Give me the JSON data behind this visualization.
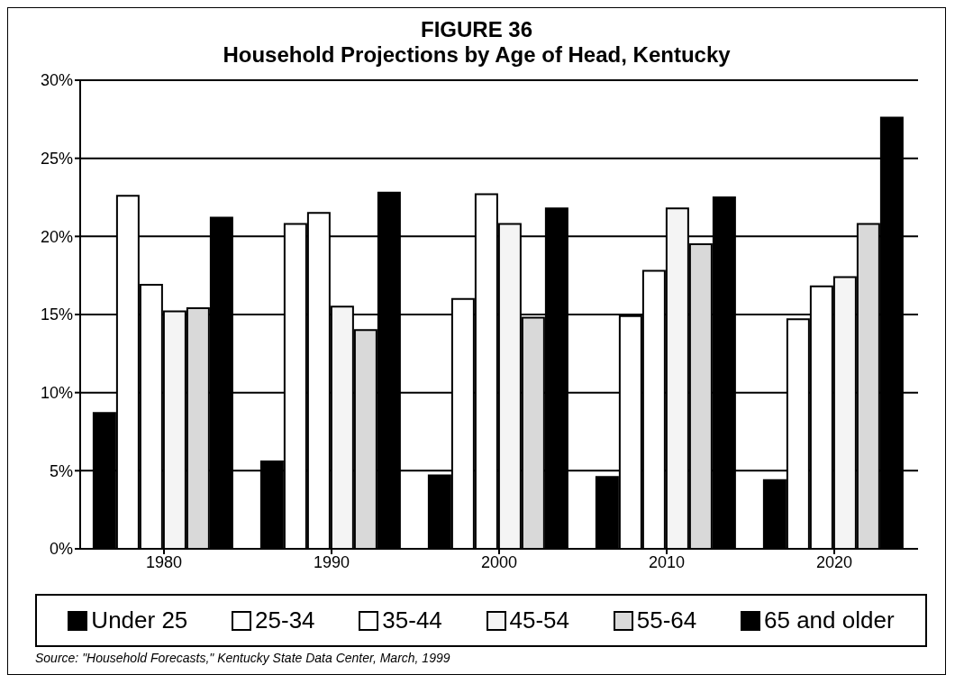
{
  "chart_data": {
    "type": "bar",
    "title": "FIGURE 36",
    "subtitle": "Household Projections by Age of Head, Kentucky",
    "categories": [
      "1980",
      "1990",
      "2000",
      "2010",
      "2020"
    ],
    "series": [
      {
        "name": "Under 25",
        "color": "#000000",
        "values": [
          8.7,
          5.6,
          4.7,
          4.6,
          4.4
        ]
      },
      {
        "name": "25-34",
        "color": "#ffffff",
        "values": [
          22.6,
          20.8,
          16.0,
          14.9,
          14.7
        ]
      },
      {
        "name": "35-44",
        "color": "#ffffff",
        "values": [
          16.9,
          21.5,
          22.7,
          17.8,
          16.8
        ]
      },
      {
        "name": "45-54",
        "color": "#f4f4f4",
        "values": [
          15.2,
          15.5,
          20.8,
          21.8,
          17.4
        ]
      },
      {
        "name": "55-64",
        "color": "#d9d9d9",
        "values": [
          15.4,
          14.0,
          14.8,
          19.5,
          20.8
        ]
      },
      {
        "name": "65 and older",
        "color": "#000000",
        "values": [
          21.2,
          22.8,
          21.8,
          22.5,
          27.6
        ]
      }
    ],
    "ylim": [
      0,
      30
    ],
    "yticks": [
      {
        "value": 0,
        "label": "0%"
      },
      {
        "value": 5,
        "label": "5%"
      },
      {
        "value": 10,
        "label": "10%"
      },
      {
        "value": 15,
        "label": "15%"
      },
      {
        "value": 20,
        "label": "20%"
      },
      {
        "value": 25,
        "label": "25%"
      },
      {
        "value": 30,
        "label": "30%"
      }
    ],
    "grid": "y",
    "legend": "bottom",
    "annotations": [
      "Source: \"Household Forecasts,\" Kentucky State Data Center, March, 1999"
    ]
  }
}
